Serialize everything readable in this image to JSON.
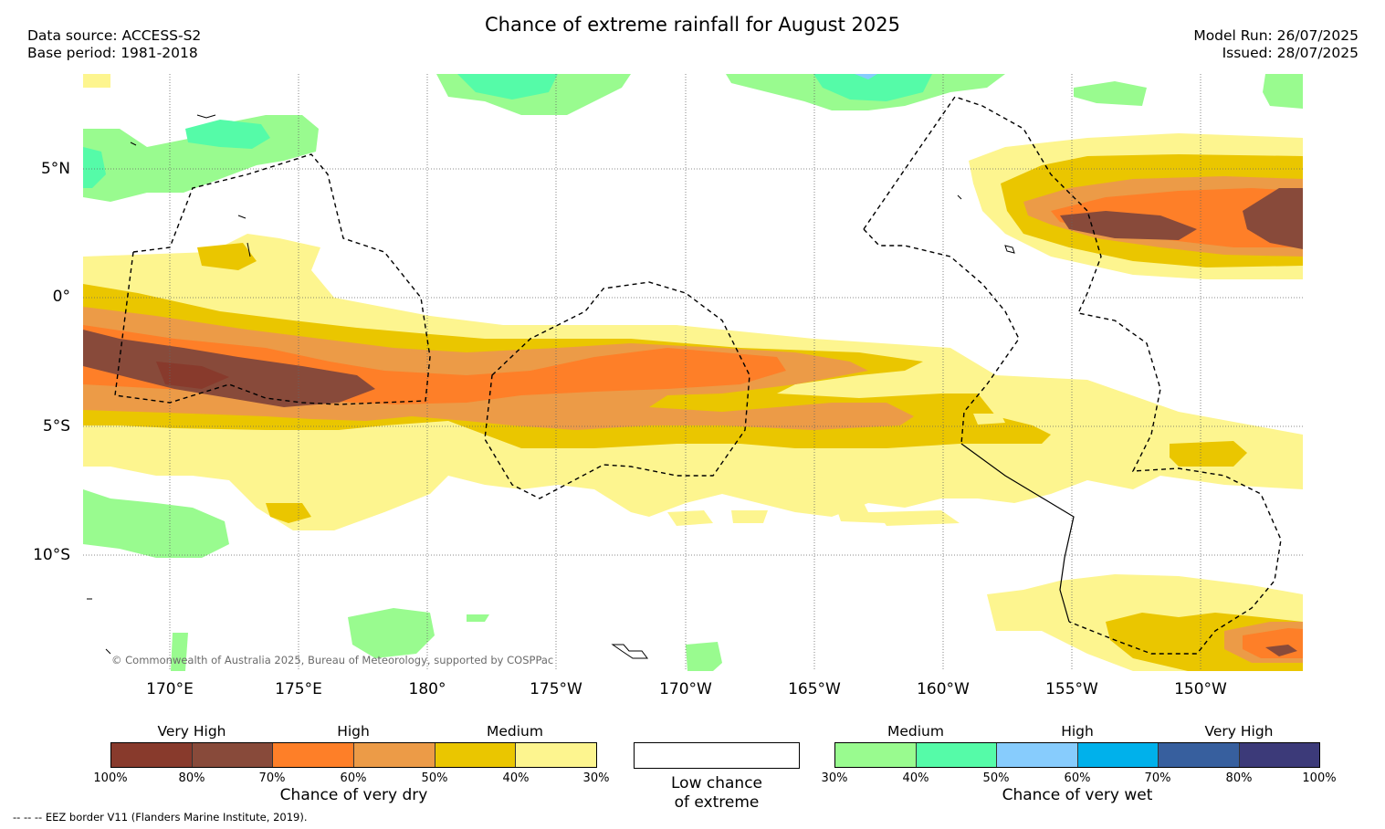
{
  "title": "Chance of extreme rainfall for August 2025",
  "meta": {
    "data_source": "Data source: ACCESS-S2",
    "base_period": "Base period: 1981-2018",
    "model_run": "Model Run: 26/07/2025",
    "issued": "Issued: 28/07/2025"
  },
  "map": {
    "lat_labels": [
      "5°N",
      "0°",
      "5°S",
      "10°S"
    ],
    "lon_labels": [
      "170°E",
      "175°E",
      "180°",
      "175°W",
      "170°W",
      "165°W",
      "160°W",
      "155°W",
      "150°W"
    ],
    "credit": "© Commonwealth of Australia 2025, Bureau of Meteorology, supported by COSPPac"
  },
  "legend": {
    "dry": {
      "headers": [
        "Very High",
        "High",
        "Medium"
      ],
      "colors": [
        "#883a2c",
        "#884a3a",
        "#fe7f28",
        "#ec9b47",
        "#eac600",
        "#fdf58f"
      ],
      "ticks": [
        "100%",
        "80%",
        "70%",
        "60%",
        "50%",
        "40%",
        "30%"
      ],
      "title": "Chance of very dry"
    },
    "low": {
      "color": "#ffffff",
      "title_line1": "Low chance",
      "title_line2": "of extreme"
    },
    "wet": {
      "headers": [
        "Medium",
        "High",
        "Very High"
      ],
      "colors": [
        "#99fb8f",
        "#55fba8",
        "#87ccfd",
        "#00b1eb",
        "#375f9e",
        "#3c3a79"
      ],
      "ticks": [
        "30%",
        "40%",
        "50%",
        "60%",
        "70%",
        "80%",
        "100%"
      ],
      "title": "Chance of very wet"
    },
    "eez_note": "--  --  -- EEZ border V11 (Flanders Marine Institute, 2019)."
  }
}
